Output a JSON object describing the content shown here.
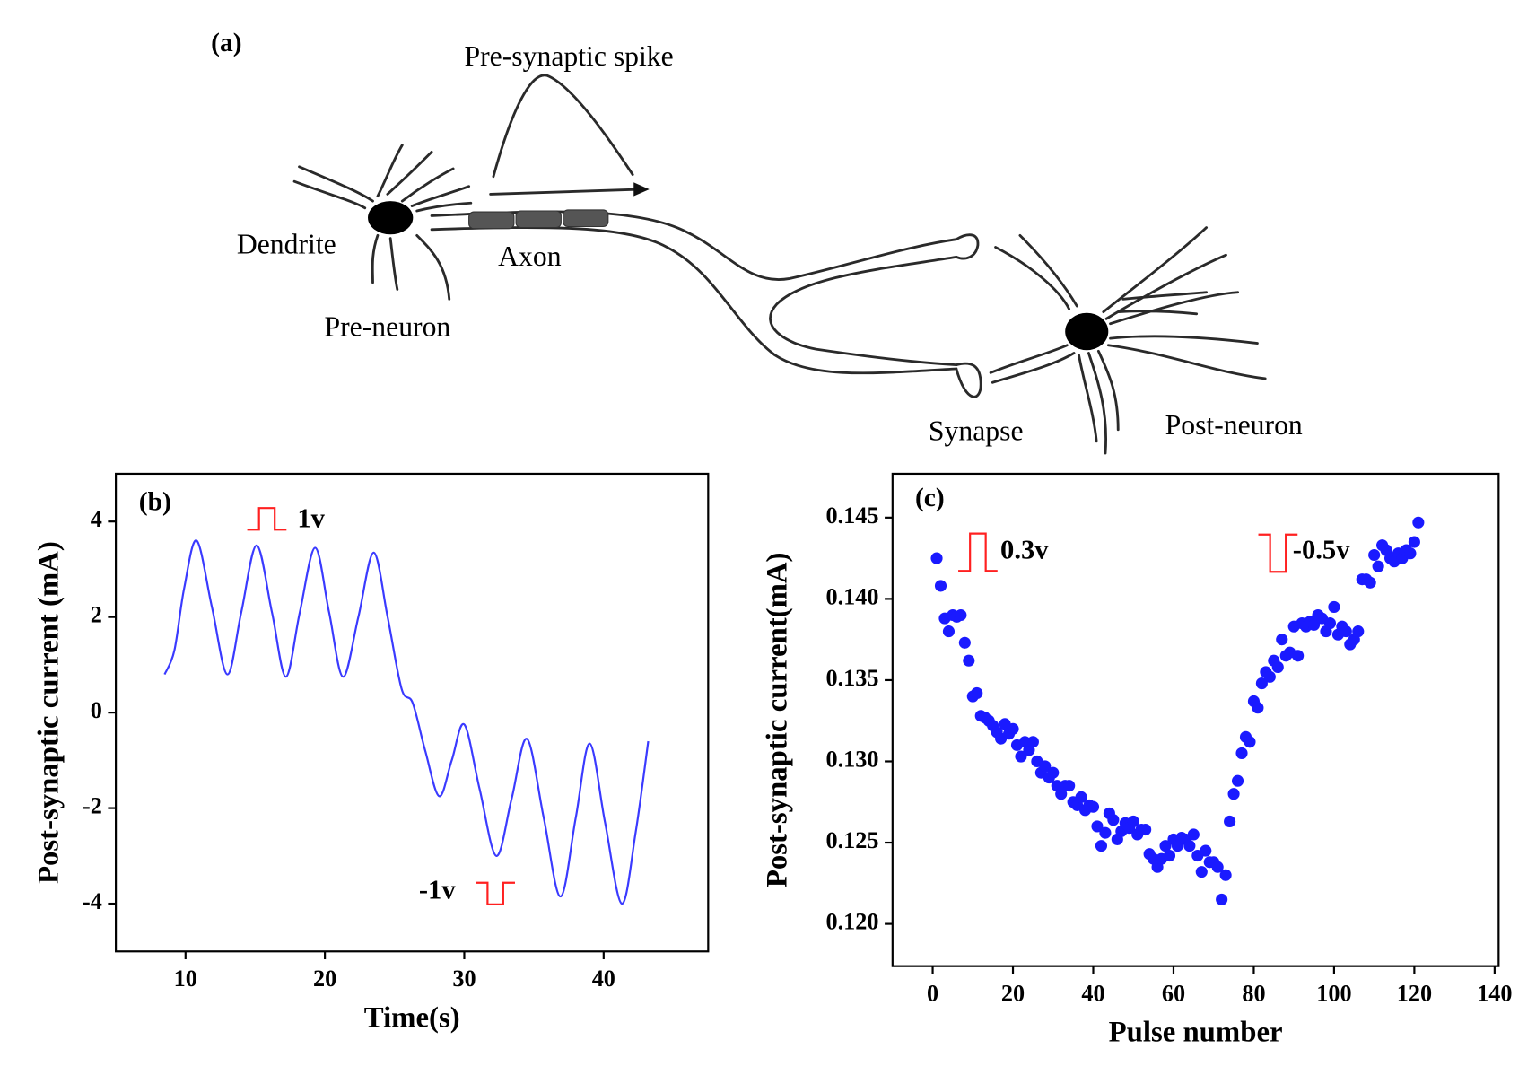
{
  "diagram": {
    "panel_label": "(a)",
    "labels": {
      "spike": "Pre-synaptic spike",
      "dendrite": "Dendrite",
      "axon": "Axon",
      "pre_neuron": "Pre-neuron",
      "synapse": "Synapse",
      "post_neuron": "Post-neuron"
    }
  },
  "chart_data": [
    {
      "type": "line",
      "panel_label": "(b)",
      "x_label": "Time(s)",
      "y_label": "Post-synaptic current (mA)",
      "annotations": [
        "1v",
        "-1v"
      ],
      "color": "#3a3aff",
      "annotation_color": "#ff2020",
      "x": [
        8.5,
        9.2,
        9.9,
        10.8,
        11.9,
        13.0,
        14.0,
        15.1,
        16.2,
        17.2,
        18.2,
        19.3,
        20.3,
        21.3,
        22.4,
        23.5,
        24.5,
        25.5,
        26.3,
        27.2,
        28.2,
        29.1,
        30.0,
        31.1,
        32.3,
        33.4,
        34.5,
        35.7,
        36.9,
        38.0,
        39.0,
        40.1,
        41.3,
        42.3,
        43.2
      ],
      "values": [
        0.8,
        1.3,
        2.6,
        3.6,
        2.2,
        0.8,
        2.1,
        3.5,
        2.1,
        0.75,
        2.1,
        3.45,
        2.1,
        0.75,
        2.0,
        3.35,
        2.0,
        0.5,
        0.2,
        -0.8,
        -1.75,
        -1.0,
        -0.25,
        -1.6,
        -3.0,
        -1.8,
        -0.55,
        -2.2,
        -3.85,
        -2.2,
        -0.65,
        -2.3,
        -4.0,
        -2.5,
        -0.6
      ],
      "xlim": [
        5,
        47.5
      ],
      "ylim": [
        -5,
        5
      ],
      "xticks": [
        10,
        20,
        30,
        40
      ],
      "yticks": [
        -4,
        -2,
        0,
        2,
        4
      ]
    },
    {
      "type": "scatter",
      "panel_label": "(c)",
      "x_label": "Pulse number",
      "y_label": "Post-synaptic current(mA)",
      "annotations": [
        "0.3v",
        "-0.5v"
      ],
      "color": "#1a1aff",
      "annotation_color": "#ff2020",
      "x": [
        1,
        2,
        3,
        4,
        5,
        6,
        7,
        8,
        9,
        10,
        11,
        12,
        13,
        14,
        15,
        16,
        17,
        18,
        19,
        20,
        21,
        22,
        23,
        24,
        25,
        26,
        27,
        28,
        29,
        30,
        31,
        32,
        33,
        34,
        35,
        36,
        37,
        38,
        39,
        40,
        41,
        42,
        43,
        44,
        45,
        46,
        47,
        48,
        49,
        50,
        51,
        52,
        53,
        54,
        55,
        56,
        57,
        58,
        59,
        60,
        61,
        62,
        63,
        64,
        65,
        66,
        67,
        68,
        69,
        70,
        71,
        72,
        73,
        74,
        75,
        76,
        77,
        78,
        79,
        80,
        81,
        82,
        83,
        84,
        85,
        86,
        87,
        88,
        89,
        90,
        91,
        92,
        93,
        94,
        95,
        96,
        97,
        98,
        99,
        100,
        101,
        102,
        103,
        104,
        105,
        106,
        107,
        108,
        109,
        110,
        111,
        112,
        113,
        114,
        115,
        116,
        117,
        118,
        119,
        120,
        121
      ],
      "values": [
        0.1425,
        0.1408,
        0.1388,
        0.138,
        0.139,
        0.1389,
        0.139,
        0.1373,
        0.1362,
        0.134,
        0.1342,
        0.1328,
        0.1327,
        0.1325,
        0.1322,
        0.1318,
        0.1314,
        0.1323,
        0.1317,
        0.132,
        0.131,
        0.1303,
        0.1312,
        0.1307,
        0.1312,
        0.13,
        0.1293,
        0.1297,
        0.129,
        0.1293,
        0.1285,
        0.128,
        0.1285,
        0.1285,
        0.1275,
        0.1273,
        0.1278,
        0.127,
        0.1273,
        0.1272,
        0.126,
        0.1248,
        0.1256,
        0.1268,
        0.1264,
        0.1252,
        0.1257,
        0.1262,
        0.1259,
        0.1263,
        0.1255,
        0.1258,
        0.1258,
        0.1243,
        0.124,
        0.1235,
        0.124,
        0.1248,
        0.1242,
        0.1252,
        0.1248,
        0.1253,
        0.1252,
        0.1248,
        0.1255,
        0.1242,
        0.1232,
        0.1245,
        0.1238,
        0.1238,
        0.1235,
        0.1215,
        0.123,
        0.1263,
        0.128,
        0.1288,
        0.1305,
        0.1315,
        0.1312,
        0.1337,
        0.1333,
        0.1348,
        0.1355,
        0.1352,
        0.1362,
        0.1358,
        0.1375,
        0.1365,
        0.1367,
        0.1383,
        0.1365,
        0.1385,
        0.1383,
        0.1386,
        0.1384,
        0.139,
        0.1388,
        0.138,
        0.1385,
        0.1395,
        0.1378,
        0.1383,
        0.138,
        0.1372,
        0.1375,
        0.138,
        0.1412,
        0.1412,
        0.141,
        0.1427,
        0.142,
        0.1433,
        0.143,
        0.1425,
        0.1423,
        0.1428,
        0.1425,
        0.143,
        0.1428,
        0.1435,
        0.1447
      ],
      "xlim": [
        -10,
        141
      ],
      "ylim": [
        0.1174,
        0.1477
      ],
      "xticks": [
        0,
        20,
        40,
        60,
        80,
        100,
        120,
        140
      ],
      "yticks": [
        {
          "value": 0.12,
          "label": "0.120"
        },
        0.125,
        {
          "value": 0.13,
          "label": "0.130"
        },
        0.135,
        {
          "value": 0.14,
          "label": "0.140"
        },
        0.145
      ]
    }
  ]
}
